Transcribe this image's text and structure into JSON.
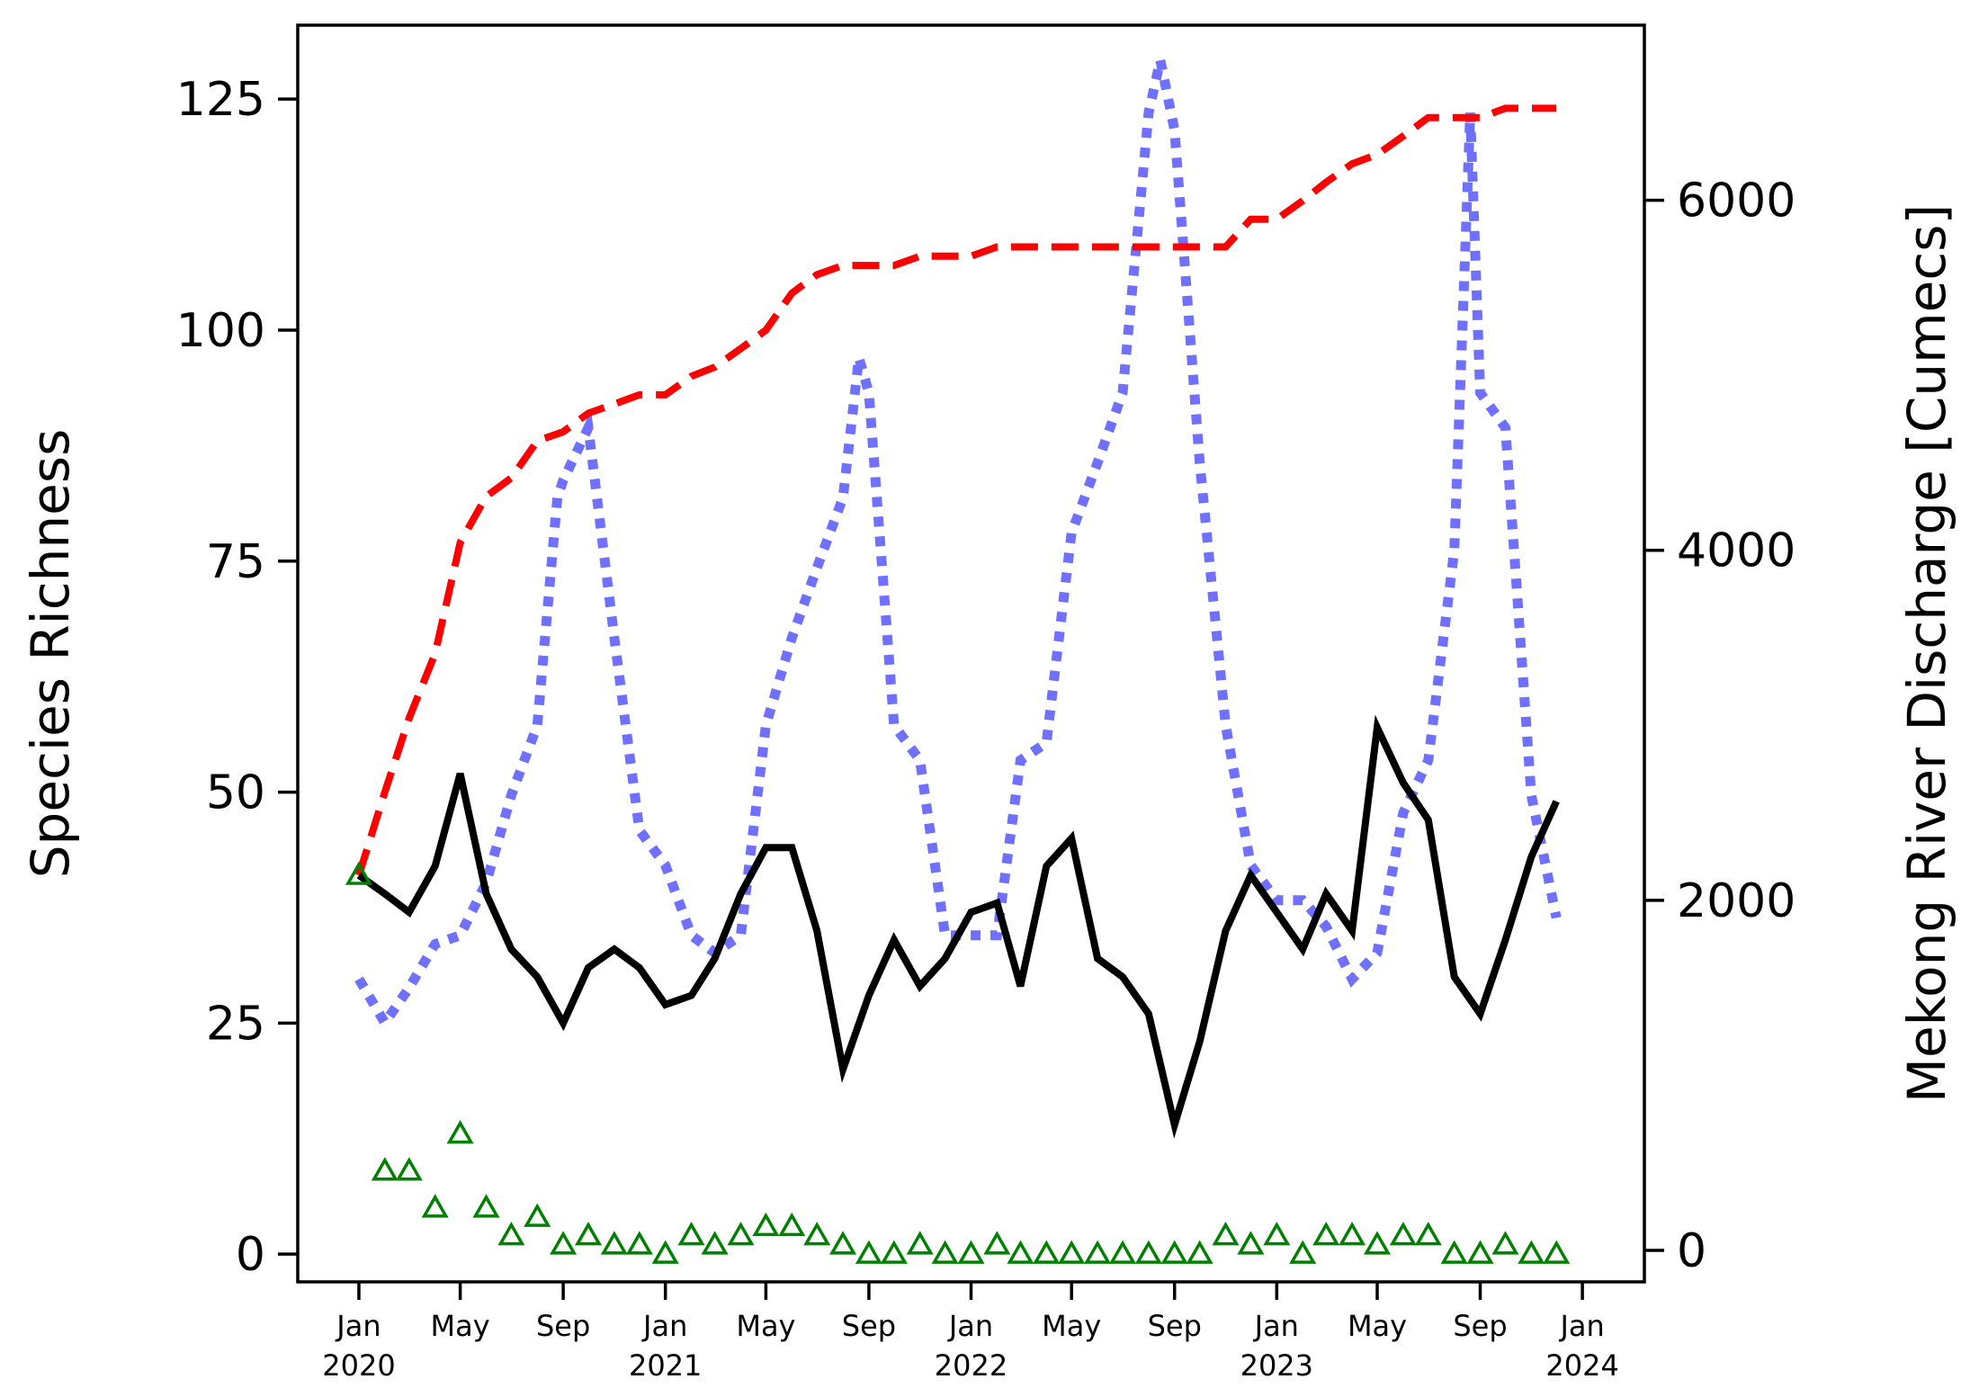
{
  "chart_data": {
    "type": "line",
    "ylabel": "Species Richness",
    "y2label": "Mekong River Discharge [Cumecs]",
    "ylim": [
      -3,
      133
    ],
    "y2lim": [
      -180,
      7000
    ],
    "yticks": [
      0,
      25,
      50,
      75,
      100,
      125
    ],
    "y2ticks": [
      0,
      2000,
      4000,
      6000
    ],
    "xlim": [
      "2019-10-20",
      "2024-03-15"
    ],
    "xticks": [
      {
        "date": "2020-01-01",
        "label": "Jan",
        "year": "2020"
      },
      {
        "date": "2020-05-01",
        "label": "May",
        "year": ""
      },
      {
        "date": "2020-09-01",
        "label": "Sep",
        "year": ""
      },
      {
        "date": "2021-01-01",
        "label": "Jan",
        "year": "2021"
      },
      {
        "date": "2021-05-01",
        "label": "May",
        "year": ""
      },
      {
        "date": "2021-09-01",
        "label": "Sep",
        "year": ""
      },
      {
        "date": "2022-01-01",
        "label": "Jan",
        "year": "2022"
      },
      {
        "date": "2022-05-01",
        "label": "May",
        "year": ""
      },
      {
        "date": "2022-09-01",
        "label": "Sep",
        "year": ""
      },
      {
        "date": "2023-01-01",
        "label": "Jan",
        "year": "2023"
      },
      {
        "date": "2023-05-01",
        "label": "May",
        "year": ""
      },
      {
        "date": "2023-09-01",
        "label": "Sep",
        "year": ""
      },
      {
        "date": "2024-01-01",
        "label": "Jan",
        "year": "2024"
      }
    ],
    "grid": false,
    "legend": "none",
    "series": [
      {
        "axis": "left",
        "style": "solid",
        "color": "#000000",
        "x": [
          "2020-01-01",
          "2020-02-01",
          "2020-03-01",
          "2020-04-01",
          "2020-05-01",
          "2020-06-01",
          "2020-07-01",
          "2020-08-01",
          "2020-09-01",
          "2020-10-01",
          "2020-11-01",
          "2020-12-01",
          "2021-01-01",
          "2021-02-01",
          "2021-03-01",
          "2021-04-01",
          "2021-05-01",
          "2021-06-01",
          "2021-07-01",
          "2021-08-01",
          "2021-09-01",
          "2021-10-01",
          "2021-11-01",
          "2021-12-01",
          "2022-01-01",
          "2022-02-01",
          "2022-03-01",
          "2022-04-01",
          "2022-05-01",
          "2022-06-01",
          "2022-07-01",
          "2022-08-01",
          "2022-09-01",
          "2022-10-01",
          "2022-11-01",
          "2022-12-01",
          "2023-01-01",
          "2023-02-01",
          "2023-03-01",
          "2023-04-01",
          "2023-05-01",
          "2023-06-01",
          "2023-07-01",
          "2023-08-01",
          "2023-09-01",
          "2023-10-01",
          "2023-11-01",
          "2023-12-01"
        ],
        "y": [
          41,
          39,
          37,
          42,
          52,
          39,
          33,
          30,
          25,
          31,
          33,
          31,
          27,
          28,
          32,
          39,
          44,
          44,
          35,
          20,
          28,
          34,
          29,
          32,
          37,
          38,
          29,
          42,
          45,
          32,
          30,
          26,
          14,
          23,
          35,
          41,
          37,
          33,
          39,
          35,
          57,
          51,
          47,
          30,
          26,
          34,
          43,
          49
        ]
      },
      {
        "axis": "left",
        "style": "dashed",
        "color": "#ff0000",
        "x": [
          "2020-01-01",
          "2020-02-01",
          "2020-03-01",
          "2020-04-01",
          "2020-05-01",
          "2020-06-01",
          "2020-07-01",
          "2020-08-01",
          "2020-09-01",
          "2020-10-01",
          "2020-11-01",
          "2020-12-01",
          "2021-01-01",
          "2021-02-01",
          "2021-03-01",
          "2021-04-01",
          "2021-05-01",
          "2021-06-01",
          "2021-07-01",
          "2021-08-01",
          "2021-09-01",
          "2021-10-01",
          "2021-11-01",
          "2021-12-01",
          "2022-01-01",
          "2022-02-01",
          "2022-03-01",
          "2022-04-01",
          "2022-05-01",
          "2022-06-01",
          "2022-07-01",
          "2022-08-01",
          "2022-09-01",
          "2022-10-01",
          "2022-11-01",
          "2022-12-01",
          "2023-01-01",
          "2023-02-01",
          "2023-03-01",
          "2023-04-01",
          "2023-05-01",
          "2023-06-01",
          "2023-07-01",
          "2023-08-01",
          "2023-09-01",
          "2023-10-01",
          "2023-11-01",
          "2023-12-01"
        ],
        "y": [
          41,
          50,
          58,
          65,
          77,
          82,
          84,
          88,
          89,
          91,
          92,
          93,
          93,
          95,
          96,
          98,
          100,
          104,
          106,
          107,
          107,
          107,
          108,
          108,
          108,
          109,
          109,
          109,
          109,
          109,
          109,
          109,
          109,
          109,
          109,
          112,
          112,
          114,
          116,
          118,
          119,
          121,
          123,
          123,
          123,
          124,
          124,
          124
        ]
      },
      {
        "axis": "right",
        "style": "dotted",
        "color": "#7070ff",
        "x": [
          "2020-01-01",
          "2020-02-01",
          "2020-03-01",
          "2020-04-01",
          "2020-05-01",
          "2020-06-01",
          "2020-07-01",
          "2020-08-01",
          "2020-08-25",
          "2020-09-01",
          "2020-10-01",
          "2020-11-01",
          "2020-12-01",
          "2021-01-01",
          "2021-02-01",
          "2021-03-01",
          "2021-04-01",
          "2021-05-01",
          "2021-06-01",
          "2021-07-01",
          "2021-08-01",
          "2021-08-20",
          "2021-09-01",
          "2021-10-01",
          "2021-11-01",
          "2021-12-01",
          "2022-01-01",
          "2022-02-01",
          "2022-03-01",
          "2022-04-01",
          "2022-05-01",
          "2022-06-01",
          "2022-07-01",
          "2022-08-01",
          "2022-08-15",
          "2022-09-01",
          "2022-10-01",
          "2022-11-01",
          "2022-12-01",
          "2023-01-01",
          "2023-02-01",
          "2023-03-01",
          "2023-04-01",
          "2023-05-01",
          "2023-06-01",
          "2023-07-01",
          "2023-08-01",
          "2023-08-20",
          "2023-09-01",
          "2023-10-01",
          "2023-11-01",
          "2023-12-01"
        ],
        "y": [
          1550,
          1300,
          1500,
          1750,
          1800,
          2100,
          2600,
          3000,
          4300,
          4400,
          4700,
          3500,
          2400,
          2200,
          1800,
          1700,
          1800,
          3000,
          3500,
          3900,
          4300,
          5100,
          4900,
          3000,
          2800,
          1800,
          1800,
          1800,
          2800,
          2900,
          4100,
          4500,
          4900,
          6500,
          6800,
          6400,
          4500,
          3000,
          2200,
          2000,
          2000,
          1850,
          1550,
          1700,
          2500,
          2800,
          4000,
          6500,
          4900,
          4700,
          2600,
          1900
        ]
      },
      {
        "axis": "left",
        "style": "markers",
        "marker": "triangle-open",
        "color": "#008000",
        "x": [
          "2020-01-01",
          "2020-02-01",
          "2020-03-01",
          "2020-04-01",
          "2020-05-01",
          "2020-06-01",
          "2020-07-01",
          "2020-08-01",
          "2020-09-01",
          "2020-10-01",
          "2020-11-01",
          "2020-12-01",
          "2021-01-01",
          "2021-02-01",
          "2021-03-01",
          "2021-04-01",
          "2021-05-01",
          "2021-06-01",
          "2021-07-01",
          "2021-08-01",
          "2021-09-01",
          "2021-10-01",
          "2021-11-01",
          "2021-12-01",
          "2022-01-01",
          "2022-02-01",
          "2022-03-01",
          "2022-04-01",
          "2022-05-01",
          "2022-06-01",
          "2022-07-01",
          "2022-08-01",
          "2022-09-01",
          "2022-10-01",
          "2022-11-01",
          "2022-12-01",
          "2023-01-01",
          "2023-02-01",
          "2023-03-01",
          "2023-04-01",
          "2023-05-01",
          "2023-06-01",
          "2023-07-01",
          "2023-08-01",
          "2023-09-01",
          "2023-10-01",
          "2023-11-01",
          "2023-12-01"
        ],
        "y": [
          41,
          9,
          9,
          5,
          13,
          5,
          2,
          4,
          1,
          2,
          1,
          1,
          0,
          2,
          1,
          2,
          3,
          3,
          2,
          1,
          0,
          0,
          1,
          0,
          0,
          1,
          0,
          0,
          0,
          0,
          0,
          0,
          0,
          0,
          2,
          1,
          2,
          0,
          2,
          2,
          1,
          2,
          2,
          0,
          0,
          1,
          0,
          0
        ]
      }
    ]
  }
}
